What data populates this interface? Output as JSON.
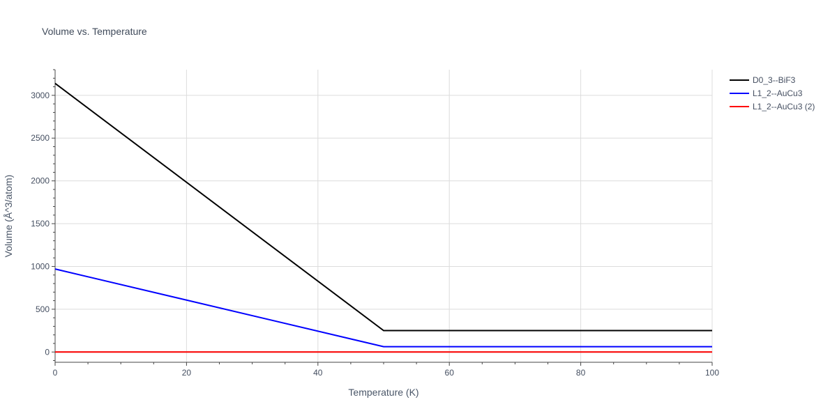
{
  "chart_data": {
    "type": "line",
    "title": "Volume vs. Temperature",
    "xlabel": "Temperature (K)",
    "ylabel": "Volume (Å^3/atom)",
    "xlim": [
      0,
      100
    ],
    "ylim": [
      -120,
      3300
    ],
    "x_ticks": [
      0,
      20,
      40,
      60,
      80,
      100
    ],
    "y_ticks": [
      0,
      500,
      1000,
      1500,
      2000,
      2500,
      3000
    ],
    "grid": true,
    "legend_position": "top-right",
    "series": [
      {
        "name": "D0_3--BiF3",
        "color": "#000000",
        "x": [
          0,
          50,
          100
        ],
        "y": [
          3140,
          250,
          250
        ]
      },
      {
        "name": "L1_2--AuCu3",
        "color": "#0000ff",
        "x": [
          0,
          50,
          100
        ],
        "y": [
          970,
          62,
          62
        ]
      },
      {
        "name": "L1_2--AuCu3 (2)",
        "color": "#ff0000",
        "x": [
          0,
          50,
          100
        ],
        "y": [
          0,
          0,
          0
        ]
      }
    ]
  }
}
